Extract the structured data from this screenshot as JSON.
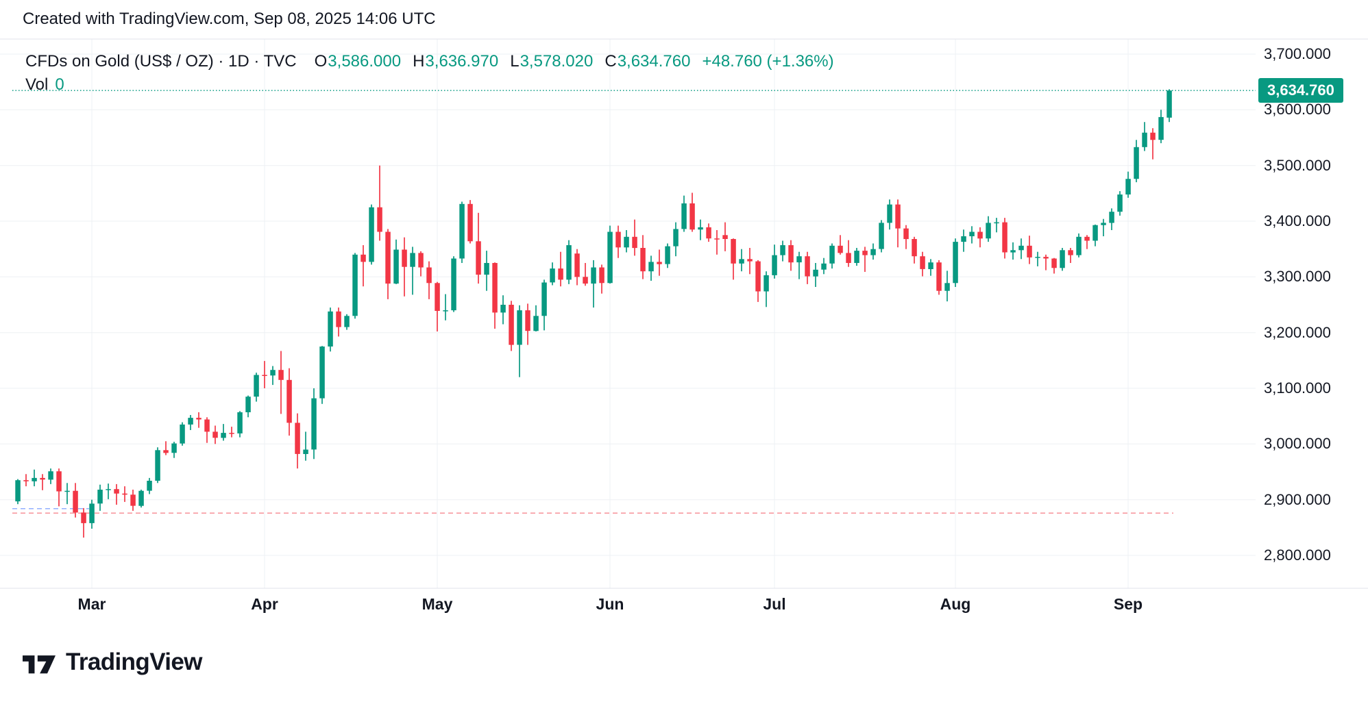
{
  "page": {
    "attribution": "Created with TradingView.com, Sep 08, 2025 14:06 UTC"
  },
  "legend": {
    "symbol_title": "CFDs on Gold (US$ / OZ) · 1D · TVC",
    "open_label": "O",
    "open_value": "3,586.000",
    "high_label": "H",
    "high_value": "3,636.970",
    "low_label": "L",
    "low_value": "3,578.020",
    "close_label": "C",
    "close_value": "3,634.760",
    "change_text": "+48.760 (+1.36%)",
    "volume_label": "Vol",
    "volume_value": "0"
  },
  "price_scale": {
    "current_price_label": "3,634.760"
  },
  "footer": {
    "brand": "TradingView"
  },
  "colors": {
    "up": "#089981",
    "down": "#F23645",
    "text": "#131722",
    "grid": "#EEF0F4",
    "frame": "#E0E3EB",
    "current_line": "#089981",
    "baseline_red": "#F23645",
    "baseline_blue": "#2962FF"
  },
  "chart_data": {
    "type": "candlestick",
    "title": "CFDs on Gold (US$ / OZ) · 1D · TVC",
    "xlabel": "",
    "ylabel": "",
    "last_bar": {
      "open": 3586.0,
      "high": 3636.97,
      "low": 3578.02,
      "close": 3634.76,
      "change": 48.76,
      "change_percent": 1.36
    },
    "current_price": 3634.76,
    "y_axis": {
      "min": 2800,
      "max": 3700,
      "tick_interval": 100
    },
    "y_ticks": [
      {
        "price": 3700,
        "label": "3,700.000"
      },
      {
        "price": 3600,
        "label": "3,600.000"
      },
      {
        "price": 3500,
        "label": "3,500.000"
      },
      {
        "price": 3400,
        "label": "3,400.000"
      },
      {
        "price": 3300,
        "label": "3,300.000"
      },
      {
        "price": 3200,
        "label": "3,200.000"
      },
      {
        "price": 3100,
        "label": "3,100.000"
      },
      {
        "price": 3000,
        "label": "3,000.000"
      },
      {
        "price": 2900,
        "label": "2,900.000"
      },
      {
        "price": 2800,
        "label": "2,800.000"
      }
    ],
    "x_ticks": [
      {
        "label": "Mar",
        "index": 9
      },
      {
        "label": "Apr",
        "index": 30
      },
      {
        "label": "May",
        "index": 51
      },
      {
        "label": "Jun",
        "index": 72
      },
      {
        "label": "Jul",
        "index": 92
      },
      {
        "label": "Aug",
        "index": 114
      },
      {
        "label": "Sep",
        "index": 135
      }
    ],
    "reference_lines": [
      {
        "price": 3634.76,
        "style": "dotted",
        "color": "#089981",
        "opacity": 1,
        "extent": "full"
      },
      {
        "price": 2876,
        "style": "dashed",
        "color": "#F23645",
        "opacity": 0.55,
        "extent": "to_last_bar"
      },
      {
        "price": 2884,
        "style": "dashed",
        "color": "#2962FF",
        "opacity": 0.5,
        "extent": "short_left"
      }
    ],
    "candles": [
      [
        2897,
        2937,
        2892,
        2935
      ],
      [
        2935,
        2946,
        2924,
        2933
      ],
      [
        2933,
        2954,
        2924,
        2939
      ],
      [
        2939,
        2946,
        2917,
        2936
      ],
      [
        2936,
        2956,
        2928,
        2951
      ],
      [
        2951,
        2956,
        2888,
        2915
      ],
      [
        2915,
        2930,
        2892,
        2916
      ],
      [
        2916,
        2930,
        2868,
        2877
      ],
      [
        2877,
        2885,
        2832,
        2858
      ],
      [
        2858,
        2900,
        2848,
        2893
      ],
      [
        2893,
        2927,
        2880,
        2918
      ],
      [
        2918,
        2929,
        2901,
        2919
      ],
      [
        2919,
        2928,
        2891,
        2911
      ],
      [
        2911,
        2924,
        2896,
        2909
      ],
      [
        2909,
        2918,
        2880,
        2889
      ],
      [
        2889,
        2918,
        2886,
        2916
      ],
      [
        2916,
        2939,
        2910,
        2934
      ],
      [
        2934,
        2994,
        2930,
        2989
      ],
      [
        2989,
        3005,
        2980,
        2984
      ],
      [
        2984,
        3004,
        2975,
        3001
      ],
      [
        3001,
        3039,
        2997,
        3035
      ],
      [
        3035,
        3052,
        3025,
        3047
      ],
      [
        3047,
        3057,
        3029,
        3044
      ],
      [
        3044,
        3048,
        3002,
        3022
      ],
      [
        3022,
        3033,
        3000,
        3011
      ],
      [
        3011,
        3036,
        3006,
        3020
      ],
      [
        3020,
        3031,
        3012,
        3019
      ],
      [
        3019,
        3059,
        3012,
        3057
      ],
      [
        3057,
        3087,
        3048,
        3085
      ],
      [
        3085,
        3128,
        3076,
        3124
      ],
      [
        3124,
        3149,
        3100,
        3123
      ],
      [
        3123,
        3140,
        3106,
        3133
      ],
      [
        3133,
        3167,
        3054,
        3115
      ],
      [
        3115,
        3136,
        3015,
        3038
      ],
      [
        3038,
        3055,
        2956,
        2982
      ],
      [
        2982,
        3022,
        2970,
        2990
      ],
      [
        2990,
        3100,
        2973,
        3082
      ],
      [
        3082,
        3176,
        3072,
        3175
      ],
      [
        3175,
        3245,
        3166,
        3238
      ],
      [
        3238,
        3245,
        3193,
        3210
      ],
      [
        3210,
        3233,
        3205,
        3230
      ],
      [
        3230,
        3343,
        3225,
        3340
      ],
      [
        3340,
        3357,
        3283,
        3327
      ],
      [
        3327,
        3430,
        3322,
        3425
      ],
      [
        3425,
        3500,
        3365,
        3381
      ],
      [
        3381,
        3386,
        3260,
        3288
      ],
      [
        3288,
        3367,
        3287,
        3349
      ],
      [
        3349,
        3371,
        3265,
        3318
      ],
      [
        3318,
        3354,
        3268,
        3343
      ],
      [
        3343,
        3346,
        3301,
        3317
      ],
      [
        3317,
        3328,
        3260,
        3289
      ],
      [
        3289,
        3291,
        3202,
        3239
      ],
      [
        3239,
        3269,
        3222,
        3240
      ],
      [
        3240,
        3337,
        3237,
        3333
      ],
      [
        3333,
        3435,
        3325,
        3431
      ],
      [
        3431,
        3438,
        3360,
        3364
      ],
      [
        3364,
        3415,
        3288,
        3304
      ],
      [
        3304,
        3347,
        3275,
        3325
      ],
      [
        3325,
        3326,
        3207,
        3236
      ],
      [
        3236,
        3267,
        3215,
        3250
      ],
      [
        3250,
        3257,
        3167,
        3178
      ],
      [
        3178,
        3249,
        3120,
        3240
      ],
      [
        3240,
        3252,
        3178,
        3203
      ],
      [
        3203,
        3249,
        3202,
        3230
      ],
      [
        3230,
        3295,
        3204,
        3290
      ],
      [
        3290,
        3326,
        3285,
        3315
      ],
      [
        3315,
        3345,
        3283,
        3295
      ],
      [
        3295,
        3366,
        3287,
        3357
      ],
      [
        3342,
        3350,
        3285,
        3300
      ],
      [
        3300,
        3325,
        3284,
        3288
      ],
      [
        3288,
        3330,
        3245,
        3317
      ],
      [
        3317,
        3322,
        3270,
        3289
      ],
      [
        3289,
        3392,
        3288,
        3381
      ],
      [
        3381,
        3392,
        3334,
        3353
      ],
      [
        3353,
        3384,
        3344,
        3372
      ],
      [
        3372,
        3403,
        3338,
        3352
      ],
      [
        3352,
        3375,
        3296,
        3310
      ],
      [
        3310,
        3338,
        3293,
        3327
      ],
      [
        3327,
        3349,
        3302,
        3323
      ],
      [
        3323,
        3360,
        3316,
        3355
      ],
      [
        3355,
        3398,
        3337,
        3386
      ],
      [
        3386,
        3446,
        3381,
        3432
      ],
      [
        3432,
        3451,
        3381,
        3385
      ],
      [
        3385,
        3403,
        3366,
        3389
      ],
      [
        3389,
        3396,
        3363,
        3369
      ],
      [
        3369,
        3384,
        3340,
        3368
      ],
      [
        3375,
        3398,
        3346,
        3368
      ],
      [
        3368,
        3369,
        3295,
        3324
      ],
      [
        3324,
        3350,
        3310,
        3332
      ],
      [
        3332,
        3352,
        3305,
        3328
      ],
      [
        3328,
        3330,
        3255,
        3274
      ],
      [
        3274,
        3310,
        3246,
        3303
      ],
      [
        3303,
        3358,
        3297,
        3339
      ],
      [
        3339,
        3365,
        3328,
        3357
      ],
      [
        3357,
        3366,
        3311,
        3326
      ],
      [
        3326,
        3345,
        3296,
        3337
      ],
      [
        3337,
        3345,
        3287,
        3301
      ],
      [
        3301,
        3325,
        3282,
        3313
      ],
      [
        3313,
        3334,
        3305,
        3324
      ],
      [
        3324,
        3360,
        3315,
        3356
      ],
      [
        3356,
        3375,
        3340,
        3343
      ],
      [
        3343,
        3366,
        3318,
        3325
      ],
      [
        3325,
        3352,
        3320,
        3347
      ],
      [
        3347,
        3354,
        3309,
        3339
      ],
      [
        3339,
        3360,
        3331,
        3350
      ],
      [
        3350,
        3402,
        3344,
        3397
      ],
      [
        3397,
        3439,
        3385,
        3430
      ],
      [
        3430,
        3439,
        3353,
        3387
      ],
      [
        3387,
        3393,
        3350,
        3368
      ],
      [
        3368,
        3372,
        3324,
        3337
      ],
      [
        3337,
        3345,
        3301,
        3314
      ],
      [
        3314,
        3332,
        3302,
        3326
      ],
      [
        3326,
        3330,
        3268,
        3275
      ],
      [
        3275,
        3311,
        3256,
        3289
      ],
      [
        3289,
        3369,
        3282,
        3363
      ],
      [
        3363,
        3385,
        3345,
        3373
      ],
      [
        3373,
        3391,
        3360,
        3381
      ],
      [
        3381,
        3389,
        3353,
        3369
      ],
      [
        3369,
        3409,
        3363,
        3397
      ],
      [
        3397,
        3406,
        3380,
        3398
      ],
      [
        3398,
        3406,
        3333,
        3344
      ],
      [
        3344,
        3362,
        3331,
        3348
      ],
      [
        3348,
        3369,
        3332,
        3356
      ],
      [
        3356,
        3374,
        3323,
        3335
      ],
      [
        3335,
        3345,
        3319,
        3336
      ],
      [
        3336,
        3340,
        3312,
        3333
      ],
      [
        3333,
        3334,
        3306,
        3316
      ],
      [
        3316,
        3352,
        3311,
        3348
      ],
      [
        3348,
        3352,
        3325,
        3339
      ],
      [
        3339,
        3378,
        3335,
        3372
      ],
      [
        3372,
        3375,
        3350,
        3365
      ],
      [
        3365,
        3394,
        3355,
        3393
      ],
      [
        3393,
        3404,
        3373,
        3397
      ],
      [
        3397,
        3423,
        3384,
        3417
      ],
      [
        3417,
        3454,
        3410,
        3448
      ],
      [
        3448,
        3489,
        3442,
        3476
      ],
      [
        3476,
        3546,
        3470,
        3533
      ],
      [
        3533,
        3578,
        3526,
        3559
      ],
      [
        3559,
        3567,
        3511,
        3546
      ],
      [
        3546,
        3600,
        3540,
        3587
      ],
      [
        3586,
        3636.97,
        3578.02,
        3634.76
      ]
    ]
  }
}
